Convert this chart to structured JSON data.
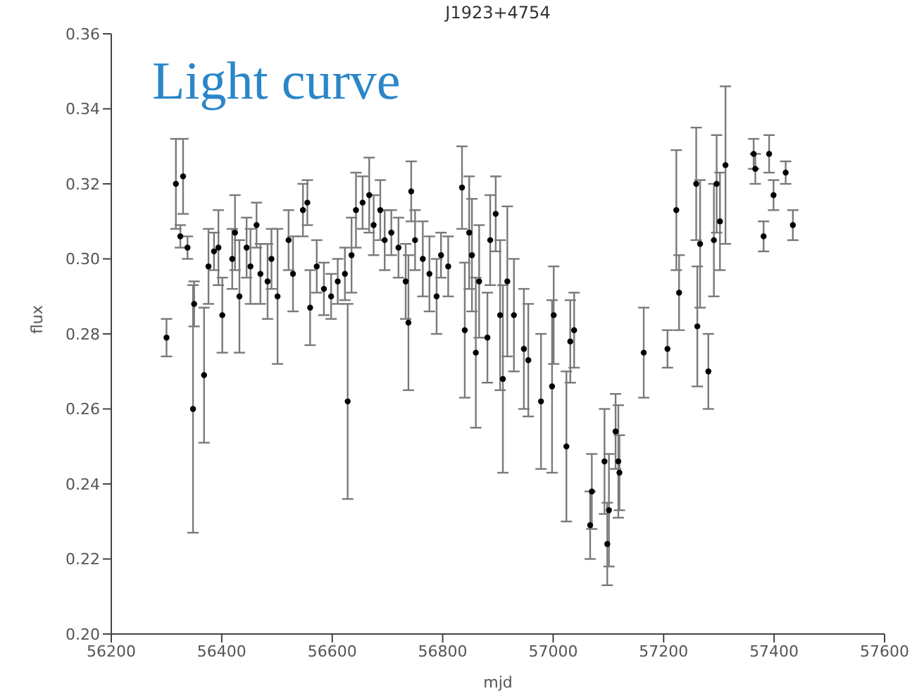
{
  "chart_data": {
    "type": "scatter",
    "title": "J1923+4754",
    "xlabel": "mjd",
    "ylabel": "flux",
    "annotations": [
      "Light curve"
    ],
    "xlim": [
      56200,
      57600
    ],
    "xticks": [
      56200,
      56400,
      56600,
      56800,
      57000,
      57200,
      57400,
      57600
    ],
    "ylim": [
      0.2,
      0.36
    ],
    "yticks": [
      {
        "value": 0.2,
        "label": "0.20"
      },
      {
        "value": 0.22,
        "label": "0.22"
      },
      {
        "value": 0.24,
        "label": "0.24"
      },
      {
        "value": 0.26,
        "label": "0.26"
      },
      {
        "value": 0.28,
        "label": "0.28"
      },
      {
        "value": 0.3,
        "label": "0.30"
      },
      {
        "value": 0.32,
        "label": "0.32"
      },
      {
        "value": 0.34,
        "label": "0.34"
      },
      {
        "value": 0.36,
        "label": "0.36"
      }
    ],
    "grid": false,
    "marker": "circle",
    "series": [
      {
        "color": "#000000",
        "x": [
          56300,
          56317,
          56330,
          56325,
          56338,
          56348,
          56350,
          56368,
          56376,
          56386,
          56394,
          56401,
          56419,
          56424,
          56432,
          56445,
          56452,
          56463,
          56470,
          56483,
          56490,
          56501,
          56521,
          56529,
          56547,
          56555,
          56560,
          56572,
          56585,
          56598,
          56610,
          56623,
          56628,
          56635,
          56643,
          56655,
          56667,
          56675,
          56687,
          56695,
          56707,
          56720,
          56733,
          56738,
          56743,
          56750,
          56764,
          56776,
          56789,
          56797,
          56810,
          56835,
          56840,
          56848,
          56853,
          56860,
          56866,
          56881,
          56886,
          56896,
          56904,
          56909,
          56917,
          56929,
          56947,
          56955,
          56978,
          56998,
          57001,
          57031,
          57038,
          57024,
          57067,
          57070,
          57093,
          57098,
          57101,
          57113,
          57118,
          57120,
          57164,
          57207,
          57223,
          57228,
          57261,
          57259,
          57266,
          57281,
          57291,
          57296,
          57302,
          57312,
          57363,
          57366,
          57381,
          57391,
          57399,
          57421,
          57434
        ],
        "values": [
          0.279,
          0.32,
          0.322,
          0.306,
          0.303,
          0.26,
          0.288,
          0.269,
          0.298,
          0.302,
          0.303,
          0.285,
          0.3,
          0.307,
          0.29,
          0.303,
          0.298,
          0.309,
          0.296,
          0.294,
          0.3,
          0.29,
          0.305,
          0.296,
          0.313,
          0.315,
          0.287,
          0.298,
          0.292,
          0.29,
          0.294,
          0.296,
          0.262,
          0.301,
          0.313,
          0.315,
          0.317,
          0.309,
          0.313,
          0.305,
          0.307,
          0.303,
          0.294,
          0.283,
          0.318,
          0.305,
          0.3,
          0.296,
          0.29,
          0.301,
          0.298,
          0.319,
          0.281,
          0.307,
          0.301,
          0.275,
          0.294,
          0.279,
          0.305,
          0.312,
          0.285,
          0.268,
          0.294,
          0.285,
          0.276,
          0.273,
          0.262,
          0.266,
          0.285,
          0.278,
          0.281,
          0.25,
          0.229,
          0.238,
          0.246,
          0.224,
          0.233,
          0.254,
          0.246,
          0.243,
          0.275,
          0.276,
          0.313,
          0.291,
          0.282,
          0.32,
          0.304,
          0.27,
          0.305,
          0.32,
          0.31,
          0.325,
          0.328,
          0.324,
          0.306,
          0.328,
          0.317,
          0.323,
          0.309
        ],
        "errors": [
          0.005,
          0.012,
          0.01,
          0.003,
          0.003,
          0.033,
          0.006,
          0.018,
          0.01,
          0.005,
          0.01,
          0.01,
          0.008,
          0.01,
          0.015,
          0.008,
          0.01,
          0.006,
          0.008,
          0.01,
          0.008,
          0.018,
          0.008,
          0.01,
          0.007,
          0.006,
          0.01,
          0.007,
          0.007,
          0.006,
          0.006,
          0.007,
          0.026,
          0.01,
          0.01,
          0.007,
          0.01,
          0.008,
          0.008,
          0.008,
          0.006,
          0.008,
          0.01,
          0.018,
          0.008,
          0.008,
          0.01,
          0.01,
          0.01,
          0.006,
          0.008,
          0.011,
          0.018,
          0.015,
          0.015,
          0.02,
          0.015,
          0.012,
          0.012,
          0.01,
          0.02,
          0.025,
          0.02,
          0.015,
          0.016,
          0.015,
          0.018,
          0.023,
          0.013,
          0.011,
          0.01,
          0.02,
          0.009,
          0.01,
          0.014,
          0.011,
          0.015,
          0.01,
          0.015,
          0.01,
          0.012,
          0.005,
          0.016,
          0.01,
          0.016,
          0.015,
          0.017,
          0.01,
          0.015,
          0.013,
          0.013,
          0.021,
          0.004,
          0.004,
          0.004,
          0.005,
          0.004,
          0.003,
          0.004
        ]
      }
    ]
  }
}
